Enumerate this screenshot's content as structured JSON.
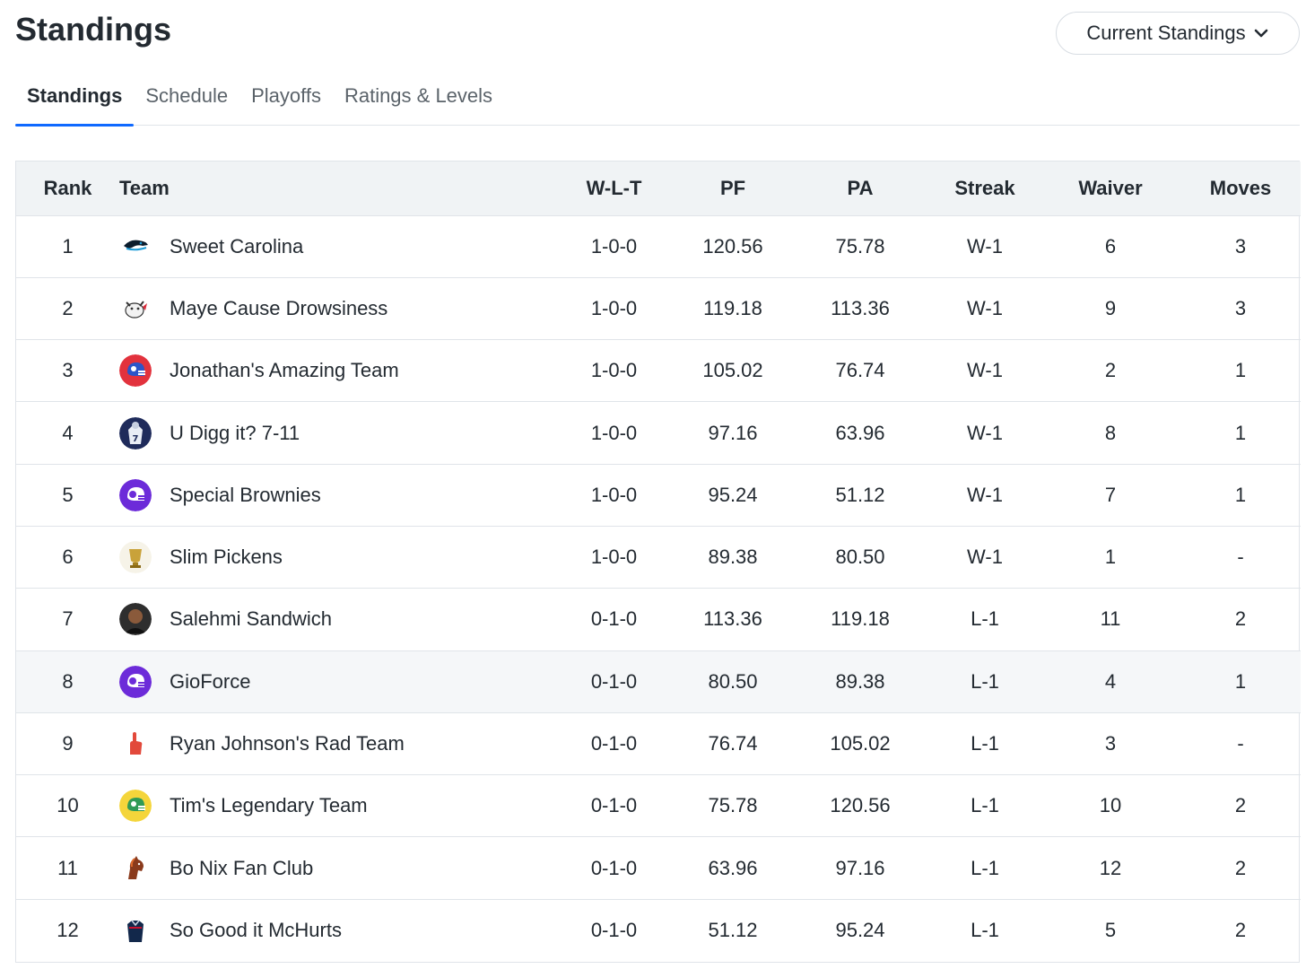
{
  "header": {
    "title": "Standings",
    "season_select": "Current Standings"
  },
  "tabs": [
    {
      "label": "Standings",
      "active": true
    },
    {
      "label": "Schedule",
      "active": false
    },
    {
      "label": "Playoffs",
      "active": false
    },
    {
      "label": "Ratings & Levels",
      "active": false
    }
  ],
  "table": {
    "headers": {
      "rank": "Rank",
      "team": "Team",
      "wlt": "W-L-T",
      "pf": "PF",
      "pa": "PA",
      "streak": "Streak",
      "waiver": "Waiver",
      "moves": "Moves"
    },
    "rows": [
      {
        "rank": "1",
        "team": "Sweet Carolina",
        "wlt": "1-0-0",
        "pf": "120.56",
        "pa": "75.78",
        "streak": "W-1",
        "waiver": "6",
        "moves": "3",
        "logo": "panther-icon"
      },
      {
        "rank": "2",
        "team": "Maye Cause Drowsiness",
        "wlt": "1-0-0",
        "pf": "119.18",
        "pa": "113.36",
        "streak": "W-1",
        "waiver": "9",
        "moves": "3",
        "logo": "cartoon-bull-icon"
      },
      {
        "rank": "3",
        "team": "Jonathan's Amazing Team",
        "wlt": "1-0-0",
        "pf": "105.02",
        "pa": "76.74",
        "streak": "W-1",
        "waiver": "2",
        "moves": "1",
        "logo": "red-helmet-icon"
      },
      {
        "rank": "4",
        "team": "U Digg it? 7-11",
        "wlt": "1-0-0",
        "pf": "97.16",
        "pa": "63.96",
        "streak": "W-1",
        "waiver": "8",
        "moves": "1",
        "logo": "player-jersey-icon"
      },
      {
        "rank": "5",
        "team": "Special Brownies",
        "wlt": "1-0-0",
        "pf": "95.24",
        "pa": "51.12",
        "streak": "W-1",
        "waiver": "7",
        "moves": "1",
        "logo": "purple-helmet-icon"
      },
      {
        "rank": "6",
        "team": "Slim Pickens",
        "wlt": "1-0-0",
        "pf": "89.38",
        "pa": "80.50",
        "streak": "W-1",
        "waiver": "1",
        "moves": "-",
        "logo": "gold-trophy-icon"
      },
      {
        "rank": "7",
        "team": "Salehmi Sandwich",
        "wlt": "0-1-0",
        "pf": "113.36",
        "pa": "119.18",
        "streak": "L-1",
        "waiver": "11",
        "moves": "2",
        "logo": "photo-avatar-icon"
      },
      {
        "rank": "8",
        "team": "GioForce",
        "wlt": "0-1-0",
        "pf": "80.50",
        "pa": "89.38",
        "streak": "L-1",
        "waiver": "4",
        "moves": "1",
        "logo": "purple-helmet-icon",
        "highlight": true
      },
      {
        "rank": "9",
        "team": "Ryan Johnson's Rad Team",
        "wlt": "0-1-0",
        "pf": "76.74",
        "pa": "105.02",
        "streak": "L-1",
        "waiver": "3",
        "moves": "-",
        "logo": "foam-finger-icon"
      },
      {
        "rank": "10",
        "team": "Tim's Legendary Team",
        "wlt": "0-1-0",
        "pf": "75.78",
        "pa": "120.56",
        "streak": "L-1",
        "waiver": "10",
        "moves": "2",
        "logo": "green-helmet-icon"
      },
      {
        "rank": "11",
        "team": "Bo Nix Fan Club",
        "wlt": "0-1-0",
        "pf": "63.96",
        "pa": "97.16",
        "streak": "L-1",
        "waiver": "12",
        "moves": "2",
        "logo": "bronco-horse-icon"
      },
      {
        "rank": "12",
        "team": "So Good it McHurts",
        "wlt": "0-1-0",
        "pf": "51.12",
        "pa": "95.24",
        "streak": "L-1",
        "waiver": "5",
        "moves": "2",
        "logo": "navy-jersey-icon"
      }
    ]
  },
  "colors": {
    "accent": "#0f69ff",
    "header_bg": "#f0f3f5",
    "border": "#e0e4e9"
  }
}
